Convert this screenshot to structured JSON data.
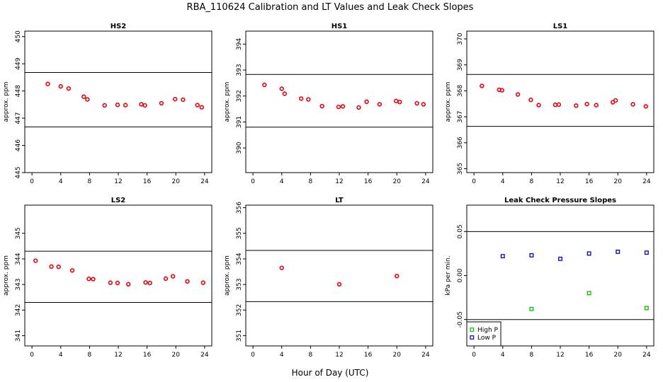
{
  "figure": {
    "title": "RBA_110624  Calibration and LT Values and Leak Check Slopes",
    "xlabel": "Hour of Day (UTC)"
  },
  "chart_data": [
    {
      "id": "hs2",
      "type": "scatter",
      "title": "HS2",
      "xlabel": "",
      "ylabel": "approx. ppm",
      "xlim": [
        -1,
        25
      ],
      "ylim": [
        445,
        450.2
      ],
      "xticks": [
        0,
        4,
        8,
        12,
        16,
        20,
        24
      ],
      "yticks": [
        445,
        446,
        447,
        448,
        449,
        450
      ],
      "hlines": [
        446.68,
        448.68
      ],
      "series": [
        {
          "marker_color": "#e8000b",
          "x": [
            2.2,
            4.0,
            5.1,
            7.2,
            7.7,
            10.1,
            11.9,
            13.0,
            15.2,
            15.7,
            18.0,
            19.9,
            21.0,
            23.0,
            23.6
          ],
          "y": [
            448.26,
            448.17,
            448.09,
            447.79,
            447.69,
            447.47,
            447.49,
            447.48,
            447.51,
            447.47,
            447.55,
            447.7,
            447.68,
            447.48,
            447.4
          ]
        }
      ]
    },
    {
      "id": "hs1",
      "type": "scatter",
      "title": "HS1",
      "xlabel": "",
      "ylabel": "approx. ppm",
      "xlim": [
        -1,
        25
      ],
      "ylim": [
        389.05,
        394.5
      ],
      "xticks": [
        0,
        4,
        8,
        12,
        16,
        20,
        24
      ],
      "yticks": [
        390,
        391,
        392,
        393,
        394
      ],
      "hlines": [
        390.8,
        392.83
      ],
      "series": [
        {
          "marker_color": "#e8000b",
          "x": [
            1.6,
            4.0,
            4.4,
            6.7,
            7.7,
            9.6,
            11.9,
            12.5,
            14.7,
            15.8,
            17.6,
            19.9,
            20.4,
            22.8,
            23.7
          ],
          "y": [
            392.43,
            392.28,
            392.09,
            391.9,
            391.87,
            391.61,
            391.58,
            391.6,
            391.56,
            391.78,
            391.68,
            391.81,
            391.77,
            391.72,
            391.68
          ]
        }
      ]
    },
    {
      "id": "ls1",
      "type": "scatter",
      "title": "LS1",
      "xlabel": "",
      "ylabel": "approx. ppm",
      "xlim": [
        -1,
        25
      ],
      "ylim": [
        364.85,
        370.3
      ],
      "xticks": [
        0,
        4,
        8,
        12,
        16,
        20,
        24
      ],
      "yticks": [
        365,
        366,
        367,
        368,
        369,
        370
      ],
      "hlines": [
        366.63,
        368.63
      ],
      "series": [
        {
          "marker_color": "#e8000b",
          "x": [
            1.1,
            3.5,
            3.9,
            6.1,
            7.9,
            9.0,
            11.3,
            11.8,
            14.2,
            15.7,
            17.0,
            19.3,
            19.7,
            22.1,
            23.9
          ],
          "y": [
            368.19,
            368.04,
            368.02,
            367.86,
            367.65,
            367.45,
            367.46,
            367.47,
            367.43,
            367.49,
            367.45,
            367.56,
            367.63,
            367.48,
            367.4
          ]
        }
      ]
    },
    {
      "id": "ls2",
      "type": "scatter",
      "title": "LS2",
      "xlabel": "",
      "ylabel": "approx. ppm",
      "xlim": [
        -1,
        25
      ],
      "ylim": [
        340.6,
        346.1
      ],
      "xticks": [
        0,
        4,
        8,
        12,
        16,
        20,
        24
      ],
      "yticks": [
        341,
        342,
        343,
        344,
        345
      ],
      "hlines": [
        342.3,
        344.3
      ],
      "series": [
        {
          "marker_color": "#e8000b",
          "x": [
            0.5,
            2.7,
            3.7,
            5.6,
            7.9,
            8.5,
            10.9,
            11.9,
            13.4,
            15.8,
            16.4,
            18.6,
            19.6,
            21.6,
            23.8
          ],
          "y": [
            343.93,
            343.7,
            343.69,
            343.55,
            343.22,
            343.21,
            343.07,
            343.06,
            343.01,
            343.08,
            343.06,
            343.23,
            343.32,
            343.12,
            343.07
          ]
        }
      ]
    },
    {
      "id": "lt",
      "type": "scatter",
      "title": "LT",
      "xlabel": "",
      "ylabel": "approx. ppm",
      "xlim": [
        -1,
        25
      ],
      "ylim": [
        350.6,
        356.1
      ],
      "xticks": [
        0,
        4,
        8,
        12,
        16,
        20,
        24
      ],
      "yticks": [
        351,
        352,
        353,
        354,
        355,
        356
      ],
      "hlines": [
        352.33,
        354.33
      ],
      "series": [
        {
          "marker_color": "#e8000b",
          "x": [
            4.0,
            12.0,
            20.0
          ],
          "y": [
            353.65,
            353.01,
            353.33
          ]
        }
      ]
    },
    {
      "id": "leak",
      "type": "scatter",
      "title": "Leak Check Pressure Slopes",
      "xlabel": "",
      "ylabel": "kPa per min.",
      "xlim": [
        -1,
        25
      ],
      "ylim": [
        -0.08,
        0.08
      ],
      "xticks": [
        0,
        4,
        8,
        12,
        16,
        20,
        24
      ],
      "yticks": [
        -0.05,
        0.0,
        0.05
      ],
      "ytick_labels": [
        "-0.05",
        "0.00",
        "0.05"
      ],
      "hlines": [
        -0.05,
        0.05
      ],
      "legend": "bottom-left",
      "series": [
        {
          "name": "High P",
          "marker_color": "#00c000",
          "x": [
            8.0,
            16.0,
            24.0
          ],
          "y": [
            -0.038,
            -0.02,
            -0.037
          ]
        },
        {
          "name": "Low P",
          "marker_color": "#0000d0",
          "x": [
            4.0,
            8.0,
            12.0,
            16.0,
            20.0,
            24.0
          ],
          "y": [
            0.022,
            0.023,
            0.019,
            0.025,
            0.027,
            0.026
          ]
        }
      ]
    }
  ]
}
